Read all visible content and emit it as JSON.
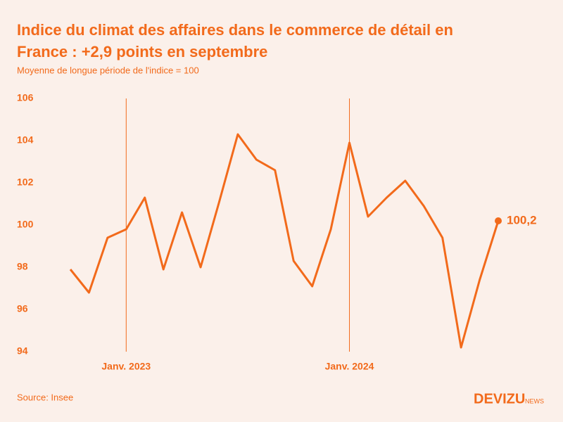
{
  "chart_data": {
    "type": "line",
    "title_lines": [
      "Indice du climat des affaires dans le commerce de détail en",
      "France : +2,9 points en septembre"
    ],
    "subtitle": "Moyenne de longue période de l'indice = 100",
    "source": "Source: Insee",
    "brand": "DEVIZU",
    "brand_suffix": "NEWS",
    "categories": [
      null,
      null,
      null,
      "Janv. 2023",
      null,
      null,
      null,
      null,
      null,
      null,
      null,
      null,
      null,
      null,
      null,
      "Janv. 2024",
      null,
      null,
      null,
      null,
      null,
      null,
      null,
      null
    ],
    "series": [
      {
        "name": "Indice",
        "color": "#f26a1b",
        "values": [
          97.9,
          96.8,
          99.4,
          99.8,
          101.3,
          97.9,
          100.6,
          98.0,
          101.1,
          104.3,
          103.1,
          102.6,
          98.3,
          97.1,
          99.8,
          103.9,
          100.4,
          101.3,
          102.1,
          100.9,
          99.4,
          94.2,
          97.4,
          100.2
        ],
        "value_labels": [
          null,
          null,
          null,
          null,
          null,
          null,
          null,
          null,
          null,
          null,
          null,
          null,
          null,
          null,
          null,
          null,
          null,
          null,
          null,
          null,
          null,
          null,
          null,
          "100,2"
        ]
      }
    ],
    "ylim": [
      94,
      106
    ],
    "yticks": [
      94,
      96,
      98,
      100,
      102,
      104,
      106
    ],
    "grid": false
  }
}
